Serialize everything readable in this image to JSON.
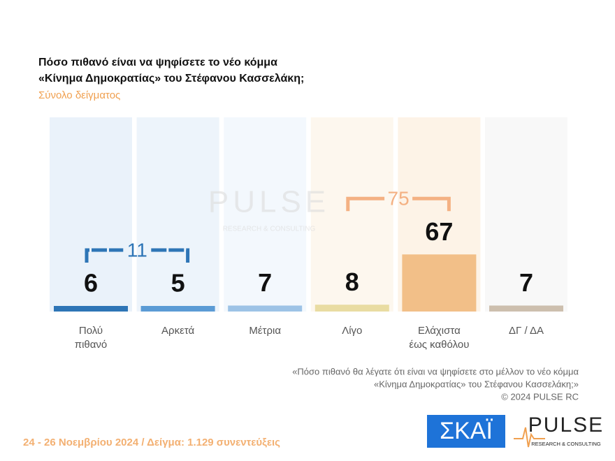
{
  "chart_data": {
    "type": "bar",
    "title": [
      "Πόσο πιθανό είναι να ψηφίσετε το νέο κόμμα",
      "«Κίνημα Δημοκρατίας» του Στέφανου Κασσελάκη;"
    ],
    "subtitle": "Σύνολο δείγματος",
    "categories": [
      [
        "Πολύ",
        "πιθανό"
      ],
      [
        "Αρκετά"
      ],
      [
        "Μέτρια"
      ],
      [
        "Λίγο"
      ],
      [
        "Ελάχιστα",
        "έως καθόλου"
      ],
      [
        "ΔΓ / ΔΑ"
      ]
    ],
    "values": [
      6,
      5,
      7,
      8,
      67,
      7
    ],
    "colors": [
      "#2e75b6",
      "#5b9bd5",
      "#9dc3e6",
      "#e9dca2",
      "#f2bf88",
      "#cdbfae"
    ],
    "bracket_totals": [
      11,
      75
    ],
    "bracket_colors": [
      "#2e75b6",
      "#f4b183"
    ],
    "note": [
      "«Πόσο πιθανό θα λέγατε ότι είναι να ψηφίσετε στο μέλλον το νέο κόμμα",
      "«Κίνημα Δημοκρατίας» του Στέφανου Κασσελάκη;»",
      "©  2024  PULSE RC"
    ],
    "footer": "24 - 26 Νοεμβρίου 2024  /  Δείγμα:  1.129 συνεντεύξεις",
    "logos": {
      "skai": "ΣΚΑΪ",
      "pulse": "PULSE",
      "pulse_sub": "RESEARCH & CONSULTING"
    }
  }
}
